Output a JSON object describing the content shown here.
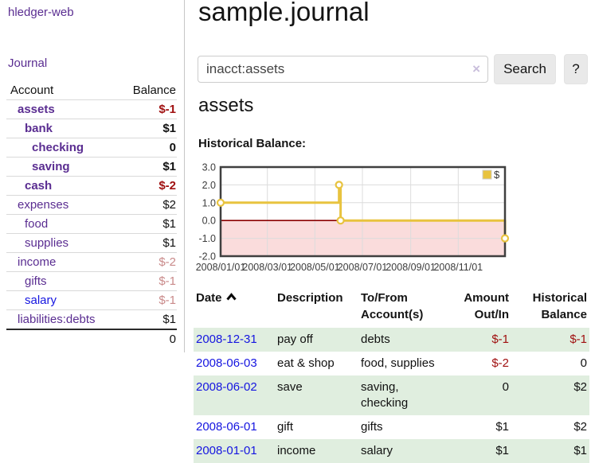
{
  "app_title": "hledger-web",
  "sidebar": {
    "journal_link": "Journal",
    "accounts": {
      "header_account": "Account",
      "header_balance": "Balance",
      "rows": [
        {
          "name": "assets",
          "balance": "$-1"
        },
        {
          "name": "bank",
          "balance": "$1"
        },
        {
          "name": "checking",
          "balance": "0"
        },
        {
          "name": "saving",
          "balance": "$1"
        },
        {
          "name": "cash",
          "balance": "$-2"
        },
        {
          "name": "expenses",
          "balance": "$2"
        },
        {
          "name": "food",
          "balance": "$1"
        },
        {
          "name": "supplies",
          "balance": "$1"
        },
        {
          "name": "income",
          "balance": "$-2"
        },
        {
          "name": "gifts",
          "balance": "$-1"
        },
        {
          "name": "salary",
          "balance": "$-1"
        },
        {
          "name": "liabilities:debts",
          "balance": "$1"
        }
      ],
      "total_balance": "0"
    }
  },
  "main": {
    "title": "sample.journal",
    "search": {
      "value": "inacct:assets",
      "clear_icon": "×",
      "search_button": "Search",
      "help_button": "?"
    },
    "account_heading": "assets",
    "chart_title": "Historical Balance:"
  },
  "chart_data": {
    "type": "line",
    "step": true,
    "title": "Historical Balance:",
    "ylim": [
      -2,
      3
    ],
    "series": [
      {
        "name": "$",
        "color": "#e8c33f",
        "points": [
          {
            "date": "2008-01-01",
            "t": 0.0,
            "value": 1
          },
          {
            "date": "2008-06-01",
            "t": 0.4164,
            "value": 2
          },
          {
            "date": "2008-06-03",
            "t": 0.4219,
            "value": 0
          },
          {
            "date": "2008-12-31",
            "t": 1.0,
            "value": -1
          }
        ]
      }
    ],
    "yticks": [
      {
        "v": 3,
        "label": "3.0"
      },
      {
        "v": 2,
        "label": "2.0"
      },
      {
        "v": 1,
        "label": "1.0"
      },
      {
        "v": 0,
        "label": "0.0"
      },
      {
        "v": -1,
        "label": "-1.0"
      },
      {
        "v": -2,
        "label": "-2.0"
      }
    ],
    "xticks": [
      {
        "t": 0.0,
        "label": "2008/01/01"
      },
      {
        "t": 0.1644,
        "label": "2008/03/01"
      },
      {
        "t": 0.3315,
        "label": "2008/05/01"
      },
      {
        "t": 0.4986,
        "label": "2008/07/01"
      },
      {
        "t": 0.6685,
        "label": "2008/09/01"
      },
      {
        "t": 0.8356,
        "label": "2008/11/01"
      }
    ],
    "legend": {
      "label": "$",
      "swatch_color": "#e8c33f",
      "position": "top-right"
    },
    "colors": {
      "line": "#e8c33f",
      "marker_fill": "#ffffff",
      "negative_region": "#fadcdc",
      "zero_line": "#8b0000",
      "grid": "#dcdcdc",
      "border": "#3f3f3f",
      "tick_text": "#3c3c3c"
    }
  },
  "register": {
    "headers": {
      "date": "Date",
      "description": "Description",
      "account_line1": "To/From",
      "account_line2": "Account(s)",
      "amount_line1": "Amount",
      "amount_line2": "Out/In",
      "balance_line1": "Historical",
      "balance_line2": "Balance"
    },
    "rows": [
      {
        "date": "2008-12-31",
        "description": "pay off",
        "accounts": "debts",
        "amount": "$-1",
        "balance": "$-1"
      },
      {
        "date": "2008-06-03",
        "description": "eat & shop",
        "accounts": "food, supplies",
        "amount": "$-2",
        "balance": "0"
      },
      {
        "date": "2008-06-02",
        "description": "save",
        "accounts": "saving, checking",
        "amount": "0",
        "balance": "$2"
      },
      {
        "date": "2008-06-01",
        "description": "gift",
        "accounts": "gifts",
        "amount": "$1",
        "balance": "$2"
      },
      {
        "date": "2008-01-01",
        "description": "income",
        "accounts": "salary",
        "amount": "$1",
        "balance": "$1"
      }
    ]
  }
}
